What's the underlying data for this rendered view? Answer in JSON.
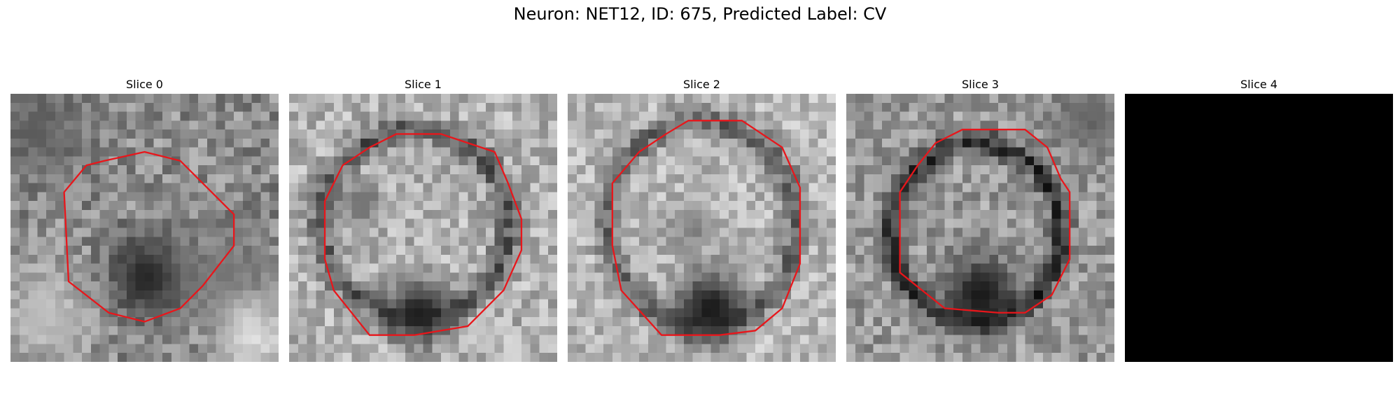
{
  "figure": {
    "title": "Neuron: NET12, ID: 675, Predicted Label: CV"
  },
  "panels": [
    {
      "label": "Slice 0",
      "blank": false,
      "seed": 11,
      "contour_color": "#e8161b"
    },
    {
      "label": "Slice 1",
      "blank": false,
      "seed": 23,
      "contour_color": "#e8161b"
    },
    {
      "label": "Slice 2",
      "blank": false,
      "seed": 37,
      "contour_color": "#e8161b"
    },
    {
      "label": "Slice 3",
      "blank": false,
      "seed": 53,
      "contour_color": "#e8161b"
    },
    {
      "label": "Slice 4",
      "blank": true,
      "seed": 0,
      "contour_color": "#e8161b"
    }
  ]
}
